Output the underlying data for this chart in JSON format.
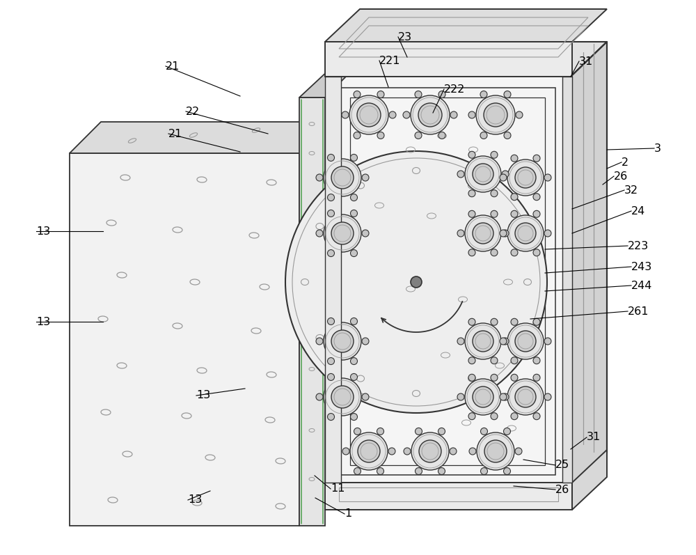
{
  "bg_color": "#ffffff",
  "line_color": "#333333",
  "light_gray": "#c8c8c8",
  "medium_gray": "#999999",
  "dark_line": "#1a1a1a",
  "green_line": "#4a9e4a",
  "figsize": [
    10.0,
    7.97
  ],
  "dpi": 100
}
